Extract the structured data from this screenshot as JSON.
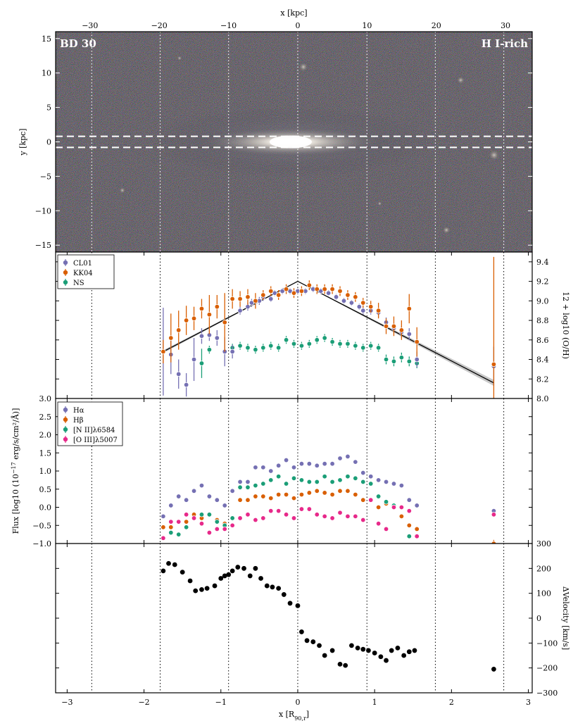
{
  "top_axis": {
    "xlabel": "x [kpc]",
    "ticks": [
      "−30",
      "−20",
      "−10",
      "0",
      "10",
      "20",
      "30"
    ],
    "tick_values": [
      -30,
      -20,
      -10,
      0,
      10,
      20,
      30
    ]
  },
  "image_panel": {
    "ylabel": "y [kpc]",
    "ylim": [
      -16,
      16
    ],
    "yticks": [
      "15",
      "10",
      "5",
      "0",
      "−5",
      "−10",
      "−15"
    ],
    "ytick_values": [
      15,
      10,
      5,
      0,
      -5,
      -10,
      -15
    ],
    "label_left": "BD 30",
    "label_right": "H I-rich",
    "slit_y": [
      -0.8,
      0.8
    ]
  },
  "bottom_axis": {
    "xlabel": "x [R90,r]",
    "xlim": [
      -3.15,
      3.05
    ],
    "ticks": [
      "−3",
      "−2",
      "−1",
      "0",
      "1",
      "2",
      "3"
    ],
    "tick_values": [
      -3,
      -2,
      -1,
      0,
      1,
      2,
      3
    ]
  },
  "kpc_per_r90": 11.1,
  "vlines_r90": [
    -2.68,
    -1.79,
    -0.9,
    0,
    0.9,
    1.79,
    2.68
  ],
  "colors": {
    "CL01": "#7570b3",
    "KK04": "#d95f02",
    "NS": "#1b9e77",
    "OIII": "#e7298a",
    "velocity": "#000000",
    "fit": "#000000"
  },
  "chart_data": [
    {
      "type": "scatter",
      "panel": "metallicity",
      "ylabel": "12 + log10 (O/H)",
      "ylim": [
        8.0,
        9.5
      ],
      "yticks": [
        "8.0",
        "8.2",
        "8.4",
        "8.6",
        "8.8",
        "9.0",
        "9.2",
        "9.4"
      ],
      "ytick_values": [
        8.0,
        8.2,
        8.4,
        8.6,
        8.8,
        9.0,
        9.2,
        9.4
      ],
      "legend": [
        "CL01",
        "KK04",
        "NS"
      ],
      "legend_position": "top-left",
      "fit_line": {
        "x": [
          -1.75,
          0,
          2.55
        ],
        "y": [
          8.48,
          9.2,
          8.16
        ]
      },
      "series": [
        {
          "name": "CL01",
          "x": [
            -1.75,
            -1.65,
            -1.55,
            -1.45,
            -1.35,
            -1.25,
            -1.15,
            -1.05,
            -0.95,
            -0.85,
            -0.75,
            -0.65,
            -0.6,
            -0.5,
            -0.45,
            -0.35,
            -0.3,
            -0.2,
            -0.1,
            0.0,
            0.1,
            0.2,
            0.3,
            0.4,
            0.5,
            0.6,
            0.7,
            0.8,
            0.85,
            0.95,
            1.05,
            1.15,
            1.25,
            1.35,
            1.45,
            1.55,
            2.55
          ],
          "y": [
            8.48,
            8.45,
            8.25,
            8.14,
            8.4,
            8.64,
            8.65,
            8.62,
            8.48,
            8.48,
            8.9,
            8.94,
            8.98,
            9.0,
            9.04,
            9.02,
            9.08,
            9.1,
            9.1,
            9.1,
            9.1,
            9.12,
            9.1,
            9.08,
            9.04,
            9.0,
            8.98,
            8.94,
            8.9,
            8.9,
            8.88,
            8.78,
            8.72,
            8.68,
            8.66,
            8.4,
            8.33
          ],
          "err": [
            0.45,
            0.2,
            0.15,
            0.12,
            0.22,
            0.08,
            0.06,
            0.08,
            0.15,
            0.07,
            0.04,
            0.04,
            0.04,
            0.04,
            0.04,
            0.03,
            0.03,
            0.03,
            0.03,
            0.03,
            0.03,
            0.03,
            0.03,
            0.03,
            0.03,
            0.03,
            0.03,
            0.03,
            0.04,
            0.04,
            0.05,
            0.05,
            0.05,
            0.06,
            0.06,
            0.08,
            0.2
          ]
        },
        {
          "name": "KK04",
          "x": [
            -1.75,
            -1.65,
            -1.55,
            -1.45,
            -1.35,
            -1.25,
            -1.15,
            -1.05,
            -0.95,
            -0.85,
            -0.75,
            -0.65,
            -0.55,
            -0.45,
            -0.35,
            -0.25,
            -0.15,
            -0.05,
            0.05,
            0.15,
            0.25,
            0.35,
            0.45,
            0.55,
            0.65,
            0.75,
            0.85,
            0.95,
            1.05,
            1.15,
            1.25,
            1.35,
            1.45,
            1.55,
            2.55
          ],
          "y": [
            8.48,
            8.62,
            8.7,
            8.8,
            8.82,
            8.92,
            8.86,
            8.94,
            8.78,
            9.02,
            9.02,
            9.04,
            9.0,
            9.06,
            9.1,
            9.06,
            9.12,
            9.08,
            9.1,
            9.16,
            9.12,
            9.12,
            9.12,
            9.1,
            9.06,
            9.04,
            8.98,
            8.94,
            8.9,
            8.74,
            8.74,
            8.7,
            8.92,
            8.58,
            8.35
          ],
          "err": [
            0.12,
            0.25,
            0.2,
            0.15,
            0.12,
            0.1,
            0.2,
            0.12,
            0.3,
            0.1,
            0.08,
            0.08,
            0.08,
            0.05,
            0.05,
            0.05,
            0.05,
            0.05,
            0.05,
            0.05,
            0.05,
            0.05,
            0.05,
            0.05,
            0.05,
            0.05,
            0.05,
            0.06,
            0.08,
            0.08,
            0.1,
            0.1,
            0.15,
            0.15,
            1.1
          ]
        },
        {
          "name": "NS",
          "x": [
            -1.25,
            -1.15,
            -0.85,
            -0.75,
            -0.65,
            -0.55,
            -0.45,
            -0.35,
            -0.25,
            -0.15,
            -0.05,
            0.05,
            0.15,
            0.25,
            0.35,
            0.45,
            0.55,
            0.65,
            0.75,
            0.85,
            0.95,
            1.05,
            1.15,
            1.25,
            1.35,
            1.45,
            1.55
          ],
          "y": [
            8.36,
            8.5,
            8.52,
            8.54,
            8.52,
            8.5,
            8.52,
            8.54,
            8.52,
            8.6,
            8.56,
            8.54,
            8.56,
            8.6,
            8.62,
            8.58,
            8.56,
            8.56,
            8.54,
            8.52,
            8.54,
            8.52,
            8.4,
            8.38,
            8.42,
            8.38,
            8.36
          ],
          "err": [
            0.15,
            0.04,
            0.04,
            0.04,
            0.04,
            0.04,
            0.04,
            0.04,
            0.04,
            0.04,
            0.04,
            0.04,
            0.04,
            0.04,
            0.04,
            0.04,
            0.04,
            0.04,
            0.04,
            0.04,
            0.04,
            0.04,
            0.05,
            0.05,
            0.05,
            0.05,
            0.05
          ]
        }
      ]
    },
    {
      "type": "scatter",
      "panel": "flux",
      "ylabel": "Flux [log10 (10^−17 erg/s/cm²/Å)]",
      "ylim": [
        -1.0,
        3.0
      ],
      "yticks": [
        "−1.0",
        "−0.5",
        "0.0",
        "0.5",
        "1.0",
        "1.5",
        "2.0",
        "2.5",
        "3.0"
      ],
      "ytick_values": [
        -1.0,
        -0.5,
        0.0,
        0.5,
        1.0,
        1.5,
        2.0,
        2.5,
        3.0
      ],
      "legend": [
        "Hα",
        "Hβ",
        "[N II]λ6584",
        "[O III]λ5007"
      ],
      "legend_position": "top-left",
      "series": [
        {
          "name": "Hα",
          "x": [
            -1.75,
            -1.65,
            -1.55,
            -1.45,
            -1.35,
            -1.25,
            -1.15,
            -1.05,
            -0.95,
            -0.85,
            -0.75,
            -0.65,
            -0.55,
            -0.45,
            -0.35,
            -0.25,
            -0.15,
            -0.05,
            0.05,
            0.15,
            0.25,
            0.35,
            0.45,
            0.55,
            0.65,
            0.75,
            0.85,
            0.95,
            1.05,
            1.15,
            1.25,
            1.35,
            1.45,
            1.55,
            2.55
          ],
          "y": [
            -0.25,
            0.05,
            0.3,
            0.2,
            0.45,
            0.6,
            0.3,
            0.2,
            0.05,
            0.45,
            0.7,
            0.7,
            1.1,
            1.1,
            1.0,
            1.15,
            1.3,
            1.1,
            1.2,
            1.2,
            1.15,
            1.2,
            1.2,
            1.35,
            1.4,
            1.25,
            0.95,
            0.85,
            0.75,
            0.7,
            0.65,
            0.6,
            0.2,
            0.05,
            -0.1
          ],
          "err": [
            0.04,
            0.04,
            0.04,
            0.04,
            0.04,
            0.04,
            0.04,
            0.04,
            0.04,
            0.04,
            0.03,
            0.03,
            0.03,
            0.03,
            0.03,
            0.03,
            0.03,
            0.03,
            0.03,
            0.03,
            0.03,
            0.03,
            0.03,
            0.03,
            0.03,
            0.03,
            0.03,
            0.03,
            0.03,
            0.03,
            0.03,
            0.03,
            0.04,
            0.04,
            0.05
          ]
        },
        {
          "name": "Hβ",
          "x": [
            -1.75,
            -1.65,
            -1.55,
            -1.45,
            -1.35,
            -1.25,
            -1.15,
            -1.05,
            -0.95,
            -0.85,
            -0.75,
            -0.65,
            -0.55,
            -0.45,
            -0.35,
            -0.25,
            -0.15,
            -0.05,
            0.05,
            0.15,
            0.25,
            0.35,
            0.45,
            0.55,
            0.65,
            0.75,
            0.85,
            0.95,
            1.05,
            1.15,
            1.25,
            1.35,
            1.45,
            1.55,
            2.55
          ],
          "y": [
            -0.55,
            -0.55,
            -0.4,
            -0.4,
            -0.2,
            -0.3,
            -0.2,
            -0.35,
            -0.45,
            -0.3,
            0.2,
            0.2,
            0.3,
            0.3,
            0.25,
            0.35,
            0.35,
            0.25,
            0.35,
            0.4,
            0.45,
            0.4,
            0.35,
            0.45,
            0.45,
            0.35,
            0.2,
            0.2,
            0.0,
            0.1,
            0.05,
            -0.25,
            -0.5,
            -0.6,
            -1.0
          ],
          "err": [
            0.05,
            0.05,
            0.05,
            0.05,
            0.05,
            0.05,
            0.05,
            0.05,
            0.05,
            0.05,
            0.04,
            0.04,
            0.04,
            0.04,
            0.04,
            0.04,
            0.04,
            0.04,
            0.04,
            0.04,
            0.04,
            0.04,
            0.04,
            0.04,
            0.04,
            0.04,
            0.04,
            0.04,
            0.04,
            0.04,
            0.04,
            0.05,
            0.05,
            0.05,
            0.1
          ]
        },
        {
          "name": "[N II]λ6584",
          "x": [
            -1.75,
            -1.65,
            -1.55,
            -1.45,
            -1.35,
            -1.25,
            -1.15,
            -1.05,
            -0.95,
            -0.85,
            -0.75,
            -0.65,
            -0.55,
            -0.45,
            -0.35,
            -0.25,
            -0.15,
            -0.05,
            0.05,
            0.15,
            0.25,
            0.35,
            0.45,
            0.55,
            0.65,
            0.75,
            0.85,
            0.95,
            1.05,
            1.15,
            1.25,
            1.35,
            1.45,
            1.55
          ],
          "y": [
            -0.85,
            -0.7,
            -0.75,
            -0.55,
            -0.3,
            -0.2,
            -0.2,
            -0.4,
            -0.5,
            -0.3,
            0.55,
            0.55,
            0.6,
            0.65,
            0.75,
            0.85,
            0.65,
            0.8,
            0.75,
            0.7,
            0.7,
            0.85,
            0.7,
            0.75,
            0.85,
            0.8,
            0.7,
            0.65,
            0.3,
            0.15,
            0.05,
            0.0,
            -0.8,
            -0.8
          ],
          "err": [
            0.06,
            0.06,
            0.06,
            0.05,
            0.05,
            0.05,
            0.05,
            0.05,
            0.05,
            0.05,
            0.04,
            0.04,
            0.04,
            0.04,
            0.04,
            0.04,
            0.04,
            0.04,
            0.04,
            0.04,
            0.04,
            0.04,
            0.04,
            0.04,
            0.04,
            0.04,
            0.04,
            0.04,
            0.04,
            0.04,
            0.04,
            0.04,
            0.06,
            0.06
          ]
        },
        {
          "name": "[O III]λ5007",
          "x": [
            -1.75,
            -1.65,
            -1.55,
            -1.45,
            -1.35,
            -1.25,
            -1.15,
            -1.05,
            -0.95,
            -0.85,
            -0.75,
            -0.65,
            -0.55,
            -0.45,
            -0.35,
            -0.25,
            -0.15,
            -0.05,
            0.05,
            0.15,
            0.25,
            0.35,
            0.45,
            0.55,
            0.65,
            0.75,
            0.85,
            0.95,
            1.05,
            1.15,
            1.25,
            1.35,
            1.45,
            1.55,
            2.55
          ],
          "y": [
            -0.85,
            -0.4,
            -0.4,
            -0.2,
            -0.3,
            -0.45,
            -0.7,
            -0.6,
            -0.6,
            -0.5,
            -0.3,
            -0.2,
            -0.35,
            -0.3,
            -0.1,
            -0.1,
            -0.2,
            -0.3,
            -0.05,
            -0.05,
            -0.2,
            -0.25,
            -0.3,
            -0.15,
            -0.25,
            -0.25,
            -0.35,
            0.2,
            -0.45,
            -0.6,
            0.0,
            0.0,
            -0.1,
            -0.8,
            -0.2
          ],
          "err": [
            0.06,
            0.05,
            0.05,
            0.05,
            0.05,
            0.05,
            0.05,
            0.05,
            0.05,
            0.05,
            0.04,
            0.04,
            0.04,
            0.04,
            0.04,
            0.04,
            0.04,
            0.04,
            0.04,
            0.04,
            0.04,
            0.04,
            0.04,
            0.04,
            0.04,
            0.04,
            0.04,
            0.04,
            0.05,
            0.05,
            0.05,
            0.05,
            0.05,
            0.06,
            0.05
          ]
        }
      ]
    },
    {
      "type": "scatter",
      "panel": "velocity",
      "ylabel": "ΔVelocity [km/s]",
      "ylim": [
        -300,
        300
      ],
      "yticks": [
        "300",
        "200",
        "100",
        "0",
        "−100",
        "−200",
        "−300"
      ],
      "ytick_values": [
        300,
        200,
        100,
        0,
        -100,
        -200,
        -300
      ],
      "series": [
        {
          "name": "",
          "x": [
            -1.75,
            -1.68,
            -1.6,
            -1.5,
            -1.4,
            -1.33,
            -1.25,
            -1.18,
            -1.08,
            -1.0,
            -0.95,
            -0.9,
            -0.85,
            -0.78,
            -0.7,
            -0.62,
            -0.55,
            -0.48,
            -0.4,
            -0.33,
            -0.25,
            -0.18,
            -0.1,
            0.0,
            0.05,
            0.12,
            0.2,
            0.28,
            0.35,
            0.45,
            0.55,
            0.62,
            0.7,
            0.78,
            0.85,
            0.92,
            1.0,
            1.08,
            1.15,
            1.22,
            1.3,
            1.38,
            1.45,
            1.52,
            2.55
          ],
          "y": [
            190,
            220,
            215,
            185,
            150,
            110,
            115,
            120,
            130,
            160,
            170,
            175,
            190,
            205,
            200,
            170,
            200,
            160,
            130,
            125,
            120,
            95,
            60,
            50,
            -55,
            -90,
            -95,
            -110,
            -150,
            -130,
            -185,
            -190,
            -110,
            -120,
            -125,
            -130,
            -140,
            -155,
            -170,
            -130,
            -120,
            -150,
            -135,
            -130,
            -205
          ]
        }
      ]
    }
  ]
}
